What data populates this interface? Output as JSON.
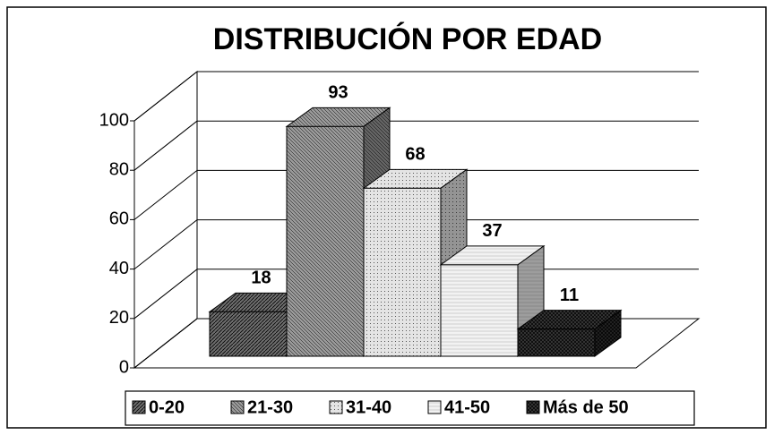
{
  "chart_data": {
    "type": "bar3d",
    "title": "DISTRIBUCIÓN POR EDAD",
    "ylim": [
      0,
      100
    ],
    "yticks": [
      0,
      20,
      40,
      60,
      80,
      100
    ],
    "grid": true,
    "series": [
      {
        "name": "0-20",
        "color": "#6e6e6e",
        "values": [
          18
        ]
      },
      {
        "name": "21-30",
        "color": "#9a9a9a",
        "values": [
          93
        ]
      },
      {
        "name": "31-40",
        "color": "#e4e4e4",
        "values": [
          68
        ]
      },
      {
        "name": "41-50",
        "color": "#f2f2f2",
        "values": [
          37
        ]
      },
      {
        "name": "Más de 50",
        "color": "#3a3a3a",
        "values": [
          11
        ]
      }
    ]
  }
}
